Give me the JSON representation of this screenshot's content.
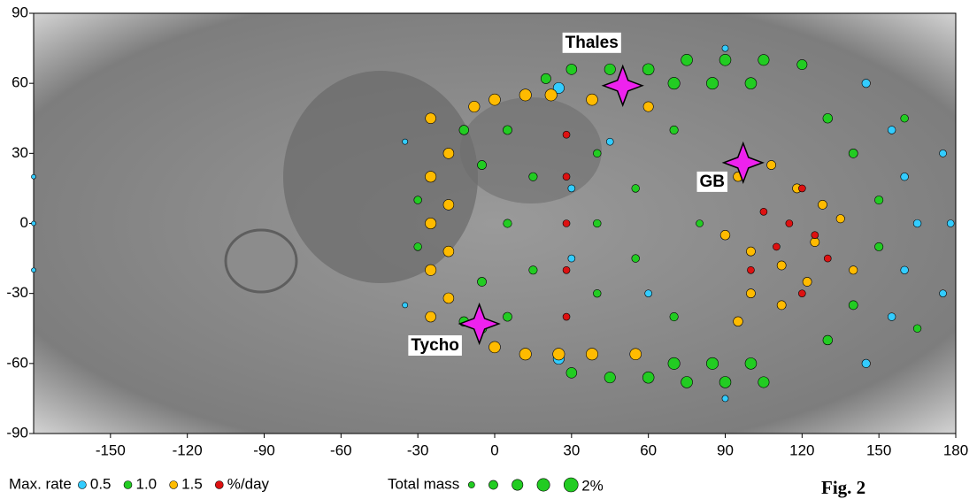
{
  "chart_data": {
    "type": "scatter",
    "xlim": [
      -180,
      180
    ],
    "ylim": [
      -90,
      90
    ],
    "xticks": [
      -150,
      -120,
      -90,
      -60,
      -30,
      0,
      30,
      60,
      90,
      120,
      150,
      180
    ],
    "yticks": [
      -90,
      -60,
      -30,
      0,
      30,
      60,
      90
    ],
    "legend_title": "Max. rate",
    "size_legend_title": "Total mass",
    "size_legend": [
      0.4,
      0.8,
      1.2,
      1.6,
      {
        "value": 2,
        "label": "2%"
      }
    ],
    "figure_label": "Fig. 2",
    "series": [
      {
        "name": "0.5",
        "color": "#33ccff",
        "x": [
          25,
          25,
          30,
          30,
          45,
          60,
          145,
          145,
          155,
          160,
          165,
          160,
          155,
          175,
          178,
          175,
          -180,
          -180,
          -180,
          90,
          90,
          -35,
          -35
        ],
        "values": [
          58,
          -58,
          15,
          -15,
          35,
          -30,
          60,
          -60,
          40,
          20,
          0,
          -20,
          -40,
          30,
          0,
          -30,
          0,
          20,
          -20,
          75,
          -75,
          35,
          -35
        ],
        "sizes": [
          1.2,
          1.2,
          0.5,
          0.5,
          0.5,
          0.5,
          0.7,
          0.7,
          0.6,
          0.6,
          0.6,
          0.6,
          0.6,
          0.5,
          0.5,
          0.5,
          0.2,
          0.2,
          0.2,
          0.4,
          0.4,
          0.3,
          0.3
        ]
      },
      {
        "name": "1.0",
        "color": "#22cc22",
        "x": [
          -30,
          -30,
          -12,
          -12,
          -5,
          -5,
          5,
          5,
          5,
          15,
          15,
          20,
          30,
          45,
          60,
          75,
          90,
          105,
          120,
          70,
          85,
          100,
          30,
          45,
          60,
          75,
          90,
          105,
          70,
          85,
          100,
          40,
          40,
          40,
          55,
          55,
          70,
          70,
          80,
          130,
          140,
          150,
          150,
          140,
          130,
          160,
          165,
          -5
        ],
        "values": [
          10,
          -10,
          40,
          -42,
          25,
          -25,
          40,
          0,
          -40,
          20,
          -20,
          62,
          66,
          66,
          66,
          70,
          70,
          70,
          68,
          60,
          60,
          60,
          -64,
          -66,
          -66,
          -68,
          -68,
          -68,
          -60,
          -60,
          -60,
          30,
          0,
          -30,
          15,
          -15,
          40,
          -40,
          0,
          45,
          30,
          10,
          -10,
          -35,
          -50,
          45,
          -45,
          -45
        ],
        "sizes": [
          0.6,
          0.6,
          0.9,
          0.9,
          0.8,
          0.8,
          0.8,
          0.7,
          0.8,
          0.7,
          0.7,
          1.0,
          1.1,
          1.2,
          1.3,
          1.3,
          1.3,
          1.2,
          1.0,
          1.4,
          1.4,
          1.3,
          1.1,
          1.2,
          1.3,
          1.3,
          1.3,
          1.2,
          1.4,
          1.4,
          1.3,
          0.6,
          0.6,
          0.6,
          0.6,
          0.6,
          0.7,
          0.7,
          0.5,
          0.9,
          0.8,
          0.7,
          0.7,
          0.8,
          0.9,
          0.6,
          0.6,
          0.9
        ]
      },
      {
        "name": "1.5",
        "color": "#ffbb00",
        "x": [
          -25,
          -25,
          -25,
          -25,
          -25,
          -18,
          -18,
          -18,
          -18,
          -8,
          0,
          12,
          22,
          38,
          60,
          0,
          12,
          25,
          38,
          55,
          95,
          108,
          118,
          128,
          90,
          100,
          112,
          125,
          135,
          100,
          112,
          122,
          95,
          140
        ],
        "values": [
          45,
          20,
          0,
          -20,
          -40,
          30,
          8,
          -12,
          -32,
          50,
          53,
          55,
          55,
          53,
          50,
          -53,
          -56,
          -56,
          -56,
          -56,
          20,
          25,
          15,
          8,
          -5,
          -12,
          -18,
          -8,
          2,
          -30,
          -35,
          -25,
          -42,
          -20
        ],
        "sizes": [
          1.1,
          1.2,
          1.2,
          1.2,
          1.1,
          1.1,
          1.1,
          1.1,
          1.1,
          1.2,
          1.3,
          1.4,
          1.4,
          1.3,
          1.0,
          1.3,
          1.4,
          1.4,
          1.4,
          1.3,
          0.9,
          0.8,
          0.8,
          0.8,
          0.9,
          0.8,
          0.8,
          0.8,
          0.7,
          0.8,
          0.8,
          0.8,
          0.9,
          0.7
        ]
      },
      {
        "name": "%/day",
        "color": "#dd1111",
        "x": [
          28,
          28,
          28,
          28,
          28,
          105,
          115,
          125,
          110,
          120,
          130,
          100,
          120
        ],
        "values": [
          38,
          20,
          0,
          -20,
          -40,
          5,
          0,
          -5,
          -10,
          15,
          -15,
          -20,
          -30
        ],
        "sizes": [
          0.5,
          0.5,
          0.5,
          0.5,
          0.5,
          0.5,
          0.5,
          0.5,
          0.5,
          0.5,
          0.5,
          0.5,
          0.5
        ]
      }
    ],
    "markers": [
      {
        "label": "Thales",
        "x": 50,
        "y": 59
      },
      {
        "label": "GB",
        "x": 97,
        "y": 26
      },
      {
        "label": "Tycho",
        "x": -6,
        "y": -43
      }
    ]
  }
}
